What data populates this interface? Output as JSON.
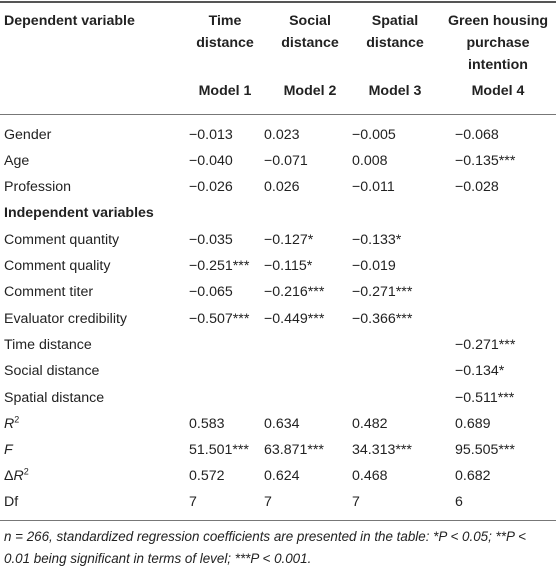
{
  "header": {
    "dependent_variable": "Dependent variable",
    "col1_title_a": "Time",
    "col1_title_b": "distance",
    "col2_title_a": "Social",
    "col2_title_b": "distance",
    "col3_title_a": "Spatial",
    "col3_title_b": "distance",
    "col4_title_a": "Green housing",
    "col4_title_b": "purchase",
    "col4_title_c": "intention",
    "model1": "Model 1",
    "model2": "Model 2",
    "model3": "Model 3",
    "model4": "Model 4"
  },
  "rows": [
    {
      "label": "Gender",
      "m1": "−0.013",
      "m2": "0.023",
      "m3": "−0.005",
      "m4": "−0.068"
    },
    {
      "label": "Age",
      "m1": "−0.040",
      "m2": "−0.071",
      "m3": "0.008",
      "m4": "−0.135***"
    },
    {
      "label": "Profession",
      "m1": "−0.026",
      "m2": "0.026",
      "m3": "−0.011",
      "m4": "−0.028"
    },
    {
      "label": "Independent variables",
      "m1": "",
      "m2": "",
      "m3": "",
      "m4": ""
    },
    {
      "label": "Comment quantity",
      "m1": "−0.035",
      "m2": "−0.127*",
      "m3": "−0.133*",
      "m4": ""
    },
    {
      "label": "Comment quality",
      "m1": "−0.251***",
      "m2": "−0.115*",
      "m3": "−0.019",
      "m4": ""
    },
    {
      "label": "Comment titer",
      "m1": "−0.065",
      "m2": "−0.216***",
      "m3": "−0.271***",
      "m4": ""
    },
    {
      "label": "Evaluator credibility",
      "m1": "−0.507***",
      "m2": "−0.449***",
      "m3": "−0.366***",
      "m4": ""
    },
    {
      "label": "Time distance",
      "m1": "",
      "m2": "",
      "m3": "",
      "m4": "−0.271***"
    },
    {
      "label": "Social distance",
      "m1": "",
      "m2": "",
      "m3": "",
      "m4": "−0.134*"
    },
    {
      "label": "Spatial distance",
      "m1": "",
      "m2": "",
      "m3": "",
      "m4": "−0.511***"
    },
    {
      "label": "R2",
      "m1": "0.583",
      "m2": "0.634",
      "m3": "0.482",
      "m4": "0.689"
    },
    {
      "label": "F",
      "m1": "51.501***",
      "m2": "63.871***",
      "m3": "34.313***",
      "m4": "95.505***"
    },
    {
      "label": "ΔR2",
      "m1": "0.572",
      "m2": "0.624",
      "m3": "0.468",
      "m4": "0.682"
    },
    {
      "label": "Df",
      "m1": "7",
      "m2": "7",
      "m3": "7",
      "m4": "6"
    }
  ],
  "labels": {
    "r2_base": "R",
    "r2_sup": "2",
    "f_label": "F",
    "dr2_prefix": "Δ",
    "dr2_base": "R",
    "dr2_sup": "2"
  },
  "note": "n = 266, standardized regression coefficients are presented in the table: *P < 0.05; **P < 0.01 being significant in terms of level; ***P < 0.001."
}
